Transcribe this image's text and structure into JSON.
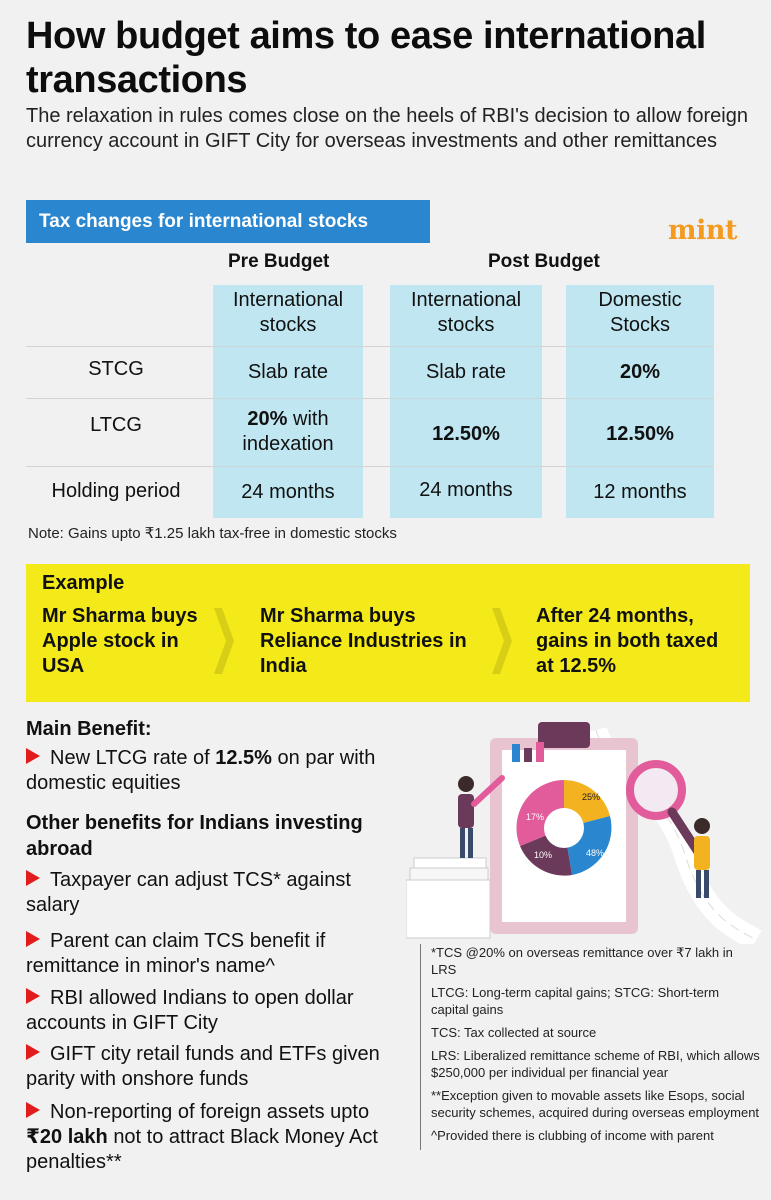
{
  "header": {
    "title": "How budget aims to ease international transactions",
    "subtitle": "The relaxation in rules comes close on the heels of RBI's decision to allow foreign currency account in GIFT City for overseas investments and other remittances"
  },
  "section": {
    "label": "Tax changes for international stocks"
  },
  "brand": "mint",
  "table": {
    "group_pre": "Pre Budget",
    "group_post": "Post Budget",
    "columns": [
      "International stocks",
      "International stocks",
      "Domestic Stocks"
    ],
    "rows": [
      {
        "label": "STCG",
        "cells": [
          "Slab rate",
          "Slab rate",
          "20%"
        ]
      },
      {
        "label": "LTCG",
        "cells": [
          "20% with indexation",
          "12.50%",
          "12.50%"
        ]
      },
      {
        "label": "Holding period",
        "cells": [
          "24 months",
          "24 months",
          "12 months"
        ]
      }
    ],
    "ltcg_pre_bold": "20%",
    "ltcg_pre_rest": "with indexation",
    "note": "Note: Gains upto ₹1.25 lakh tax-free in domestic stocks"
  },
  "example": {
    "title": "Example",
    "steps": [
      "Mr Sharma buys Apple stock in USA",
      "Mr Sharma buys Reliance Industries in India"
    ],
    "final_prefix": "After 24 months, gains in both taxed at",
    "final_bold": "12.5%"
  },
  "main_benefit": {
    "heading": "Main Benefit:",
    "prefix": "New LTCG rate of",
    "bold": "12.5%",
    "suffix": "on par with domestic equities"
  },
  "other_benefits": {
    "heading": "Other benefits for Indians investing abroad",
    "items": [
      "Taxpayer can adjust TCS* against salary",
      "Parent can claim TCS benefit if remittance in minor's name^",
      "RBI allowed Indians to open dollar accounts in GIFT City",
      "GIFT city retail funds and ETFs given parity with onshore funds"
    ],
    "last_prefix": "Non-reporting of foreign assets upto",
    "last_bold": "₹20 lakh",
    "last_suffix": "not to attract Black Money Act penalties**"
  },
  "illustration": {
    "icons": [
      "clipboard-icon",
      "pie-chart-icon",
      "bar-chart-icon",
      "magnifier-icon",
      "receipt-icon"
    ],
    "pie_labels": [
      "25%",
      "17%",
      "10%",
      "48%"
    ]
  },
  "footnotes": [
    "*TCS @20% on overseas remittance over ₹7 lakh in LRS",
    "LTCG: Long-term capital gains; STCG: Short-term capital gains",
    "TCS: Tax collected at source",
    "LRS: Liberalized remittance scheme of RBI, which allows $250,000 per individual per financial year",
    "**Exception given to movable assets like Esops, social security schemes, acquired during overseas employment",
    "^Provided there is clubbing of income with parent"
  ],
  "colors": {
    "accent_blue": "#2a86cf",
    "table_blue": "#bfe6f1",
    "highlight_yellow": "#f4ea1a",
    "bullet_red": "#e21b1b",
    "brand_orange": "#f39a1f"
  }
}
